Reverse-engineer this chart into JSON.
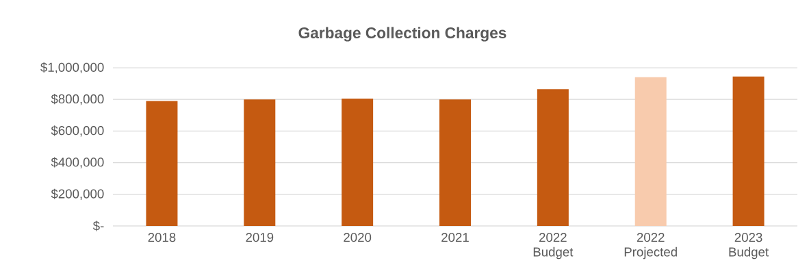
{
  "chart_data": {
    "type": "bar",
    "title": "Garbage Collection Charges",
    "categories": [
      "2018",
      "2019",
      "2020",
      "2021",
      "2022 Budget",
      "2022 Projected",
      "2023 Budget"
    ],
    "values": [
      790000,
      800000,
      805000,
      800000,
      865000,
      940000,
      945000
    ],
    "colors": [
      "#c55a11",
      "#c55a11",
      "#c55a11",
      "#c55a11",
      "#c55a11",
      "#f8cbad",
      "#c55a11"
    ],
    "ylim": [
      0,
      1000000
    ],
    "yticks": [
      {
        "value": 0,
        "label": "$-"
      },
      {
        "value": 200000,
        "label": "$200,000"
      },
      {
        "value": 400000,
        "label": "$400,000"
      },
      {
        "value": 600000,
        "label": "$600,000"
      },
      {
        "value": 800000,
        "label": "$800,000"
      },
      {
        "value": 1000000,
        "label": "$1,000,000"
      }
    ],
    "grid": "y"
  }
}
